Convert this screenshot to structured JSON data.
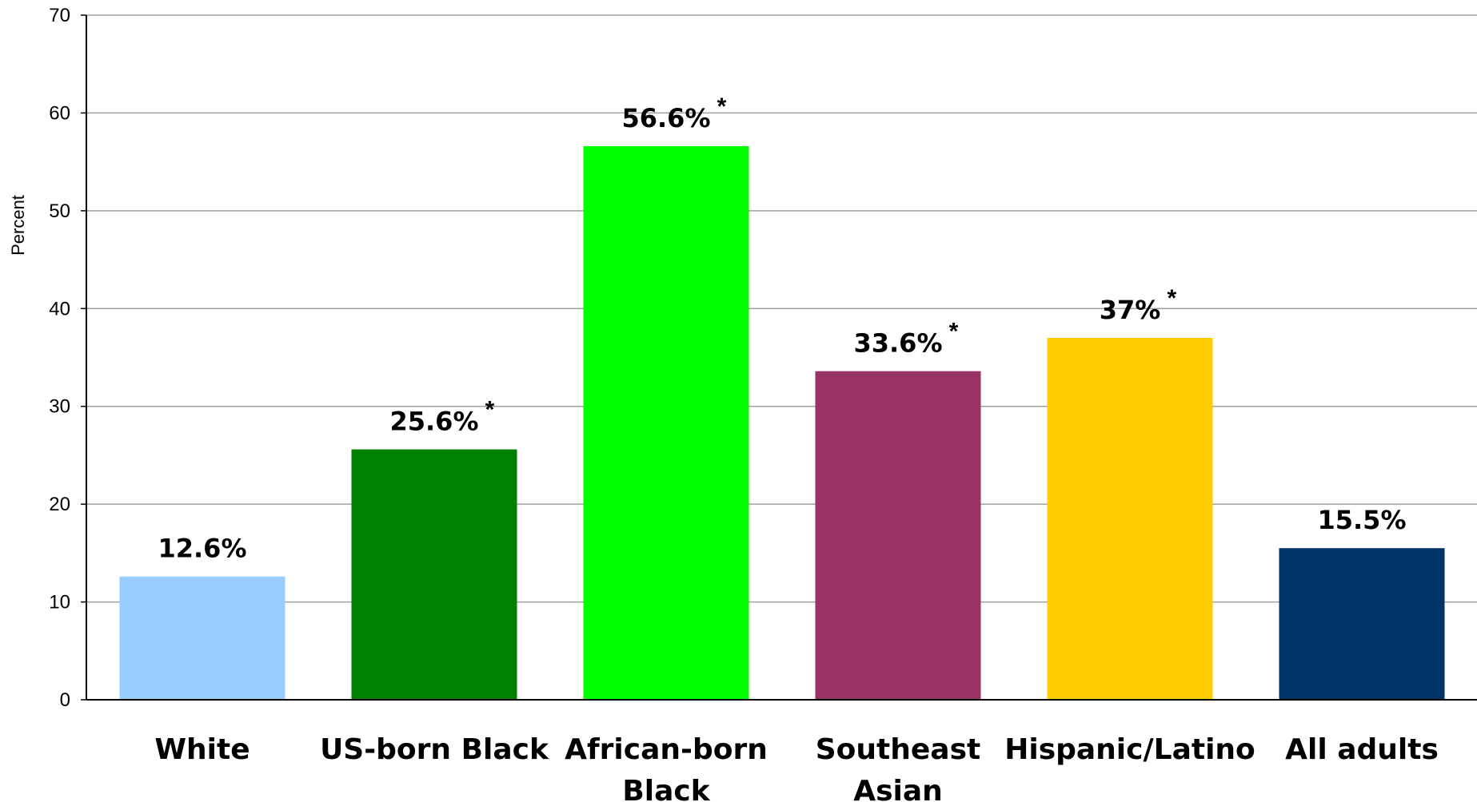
{
  "chart_data": {
    "type": "bar",
    "categories": [
      [
        "White"
      ],
      [
        "US-born Black"
      ],
      [
        "African-born",
        "Black"
      ],
      [
        "Southeast",
        "Asian"
      ],
      [
        "Hispanic/Latino"
      ],
      [
        "All adults"
      ]
    ],
    "values": [
      12.6,
      25.6,
      56.6,
      33.6,
      37,
      15.5
    ],
    "data_labels": [
      "12.6%",
      "25.6%",
      "56.6%",
      "33.6%",
      "37%",
      "15.5%"
    ],
    "significance_marks": [
      "",
      "*",
      "*",
      "*",
      "*",
      ""
    ],
    "colors": [
      "#99ccff",
      "#008000",
      "#00ff00",
      "#993366",
      "#ffcc00",
      "#003366"
    ],
    "ylabel": "Percent",
    "ylim": [
      0,
      70
    ],
    "yticks": [
      0,
      10,
      20,
      30,
      40,
      50,
      60,
      70
    ],
    "grid": true,
    "legend": "none"
  }
}
